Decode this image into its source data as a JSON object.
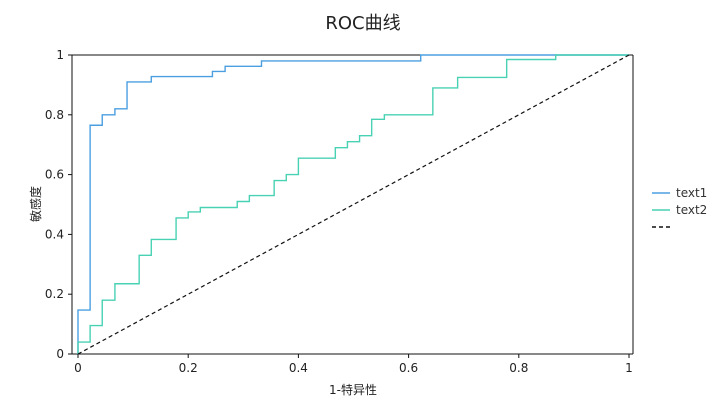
{
  "chart_data": {
    "type": "line",
    "title": "ROC曲线",
    "xlabel": "1-特异性",
    "ylabel": "敏感度",
    "xlim": [
      0,
      1
    ],
    "ylim": [
      0,
      1
    ],
    "x_ticks": [
      "0",
      "0.2",
      "0.4",
      "0.6",
      "0.8",
      "1"
    ],
    "y_ticks": [
      "0",
      "0.2",
      "0.4",
      "0.6",
      "0.8",
      "1"
    ],
    "grid": false,
    "legend_position": "right",
    "series": [
      {
        "name": "text1",
        "color": "#4b9fe1",
        "style": "solid",
        "x": [
          0,
          0,
          0.022,
          0.022,
          0.044,
          0.044,
          0.067,
          0.067,
          0.089,
          0.089,
          0.133,
          0.133,
          0.244,
          0.244,
          0.267,
          0.267,
          0.333,
          0.333,
          0.622,
          0.622,
          1.0
        ],
        "y": [
          0,
          0.147,
          0.147,
          0.765,
          0.765,
          0.8,
          0.8,
          0.82,
          0.82,
          0.91,
          0.91,
          0.928,
          0.928,
          0.945,
          0.945,
          0.962,
          0.962,
          0.98,
          0.98,
          1.0,
          1.0
        ]
      },
      {
        "name": "text2",
        "color": "#49d1b4",
        "style": "solid",
        "x": [
          0,
          0,
          0.022,
          0.022,
          0.044,
          0.044,
          0.067,
          0.067,
          0.111,
          0.111,
          0.133,
          0.133,
          0.178,
          0.178,
          0.2,
          0.2,
          0.222,
          0.222,
          0.289,
          0.289,
          0.311,
          0.311,
          0.356,
          0.356,
          0.378,
          0.378,
          0.4,
          0.4,
          0.467,
          0.467,
          0.489,
          0.489,
          0.511,
          0.511,
          0.533,
          0.533,
          0.556,
          0.556,
          0.644,
          0.644,
          0.689,
          0.689,
          0.778,
          0.778,
          0.867,
          0.867,
          1.0
        ],
        "y": [
          0,
          0.04,
          0.04,
          0.095,
          0.095,
          0.18,
          0.18,
          0.235,
          0.235,
          0.33,
          0.33,
          0.383,
          0.383,
          0.455,
          0.455,
          0.475,
          0.475,
          0.49,
          0.49,
          0.51,
          0.51,
          0.53,
          0.53,
          0.58,
          0.58,
          0.6,
          0.6,
          0.655,
          0.655,
          0.69,
          0.69,
          0.71,
          0.71,
          0.73,
          0.73,
          0.785,
          0.785,
          0.8,
          0.8,
          0.89,
          0.89,
          0.925,
          0.925,
          0.985,
          0.985,
          1.0,
          1.0
        ]
      },
      {
        "name": "",
        "color": "#111111",
        "style": "dashed",
        "x": [
          0,
          1
        ],
        "y": [
          0,
          1
        ]
      }
    ]
  }
}
